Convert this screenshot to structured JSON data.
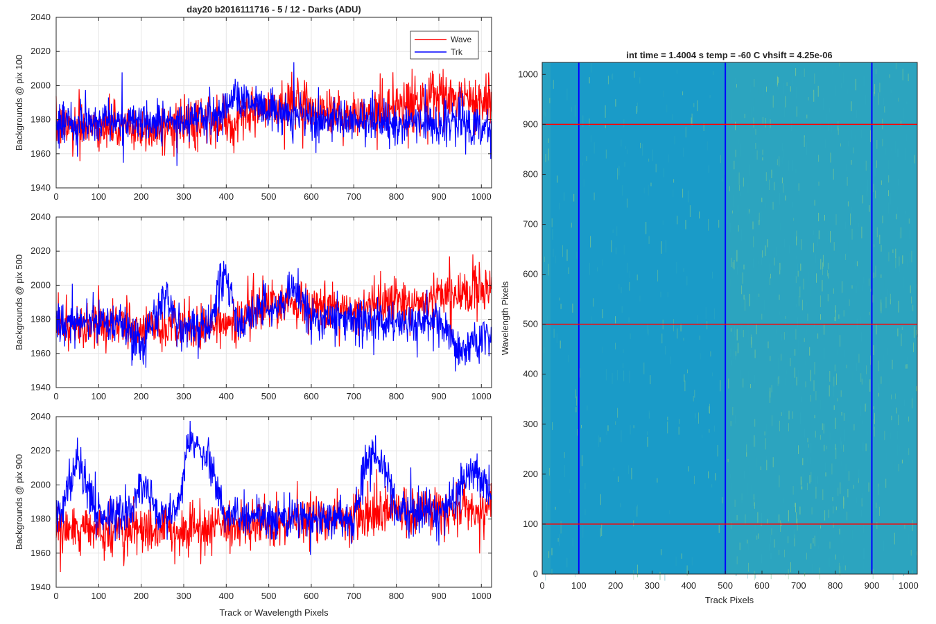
{
  "figure": {
    "left_title": "day20 b2016111716 - 5 / 12 - Darks (ADU)",
    "right_title": "int time = 1.4004 s    temp = -60 C    vhsift = 4.25e-06",
    "colors": {
      "wave": "#ff0000",
      "trk": "#0000ff",
      "grid": "#e6e6e6",
      "axis": "#262626"
    }
  },
  "chart_data": [
    {
      "type": "line",
      "title": "day20 b2016111716 - 5 / 12 - Darks (ADU)",
      "xlabel": "",
      "ylabel": "Backgrounds @ pix 100",
      "xlim": [
        0,
        1024
      ],
      "ylim": [
        1940,
        2040
      ],
      "xticks": [
        0,
        100,
        200,
        300,
        400,
        500,
        600,
        700,
        800,
        900,
        1000
      ],
      "yticks": [
        1940,
        1960,
        1980,
        2000,
        2020,
        2040
      ],
      "grid": true,
      "legend": {
        "placement": "top-right",
        "entries": [
          "Wave",
          "Trk"
        ]
      },
      "series": [
        {
          "name": "Wave",
          "color": "#ff0000",
          "approx": true,
          "noise": 9,
          "x": [
            0,
            50,
            100,
            200,
            300,
            360,
            400,
            450,
            500,
            550,
            600,
            650,
            700,
            750,
            800,
            850,
            900,
            950,
            1000,
            1024
          ],
          "y": [
            1975,
            1978,
            1976,
            1975,
            1976,
            1977,
            1978,
            1983,
            1985,
            1990,
            1988,
            1984,
            1982,
            1985,
            1988,
            1990,
            1993,
            1992,
            1990,
            1995
          ]
        },
        {
          "name": "Trk",
          "color": "#0000ff",
          "approx": true,
          "noise": 8,
          "x": [
            0,
            50,
            100,
            200,
            300,
            380,
            420,
            440,
            460,
            480,
            550,
            600,
            700,
            800,
            900,
            1000,
            1024
          ],
          "y": [
            1975,
            1978,
            1980,
            1979,
            1980,
            1981,
            1996,
            1993,
            1990,
            1987,
            1983,
            1980,
            1979,
            1978,
            1978,
            1977,
            1975
          ]
        }
      ]
    },
    {
      "type": "line",
      "xlabel": "",
      "ylabel": "Backgrounds @ pix 500",
      "xlim": [
        0,
        1024
      ],
      "ylim": [
        1940,
        2040
      ],
      "xticks": [
        0,
        100,
        200,
        300,
        400,
        500,
        600,
        700,
        800,
        900,
        1000
      ],
      "yticks": [
        1940,
        1960,
        1980,
        2000,
        2020,
        2040
      ],
      "grid": true,
      "series": [
        {
          "name": "Wave",
          "color": "#ff0000",
          "approx": true,
          "noise": 9,
          "x": [
            0,
            100,
            200,
            300,
            360,
            400,
            450,
            500,
            550,
            600,
            650,
            700,
            750,
            800,
            850,
            900,
            950,
            1000,
            1024
          ],
          "y": [
            1978,
            1977,
            1975,
            1974,
            1975,
            1978,
            1984,
            1988,
            1990,
            1987,
            1986,
            1984,
            1990,
            1992,
            1990,
            1994,
            1996,
            1998,
            2000
          ]
        },
        {
          "name": "Trk",
          "color": "#0000ff",
          "approx": true,
          "noise": 8,
          "x": [
            0,
            50,
            100,
            150,
            200,
            240,
            260,
            280,
            300,
            360,
            385,
            400,
            415,
            430,
            480,
            540,
            560,
            580,
            600,
            700,
            800,
            900,
            940,
            960,
            1000,
            1024
          ],
          "y": [
            1976,
            1978,
            1979,
            1978,
            1966,
            1985,
            1995,
            1980,
            1975,
            1976,
            2000,
            2008,
            1990,
            1975,
            1988,
            1990,
            2000,
            1988,
            1982,
            1980,
            1978,
            1977,
            1963,
            1962,
            1970,
            1968
          ]
        }
      ]
    },
    {
      "type": "line",
      "xlabel": "Track or Wavelength Pixels",
      "ylabel": "Backgrounds @ pix 900",
      "xlim": [
        0,
        1024
      ],
      "ylim": [
        1940,
        2040
      ],
      "xticks": [
        0,
        100,
        200,
        300,
        400,
        500,
        600,
        700,
        800,
        900,
        1000
      ],
      "yticks": [
        1940,
        1960,
        1980,
        2000,
        2020,
        2040
      ],
      "grid": true,
      "series": [
        {
          "name": "Wave",
          "color": "#ff0000",
          "approx": true,
          "noise": 9,
          "x": [
            0,
            100,
            200,
            300,
            400,
            500,
            600,
            700,
            800,
            900,
            950,
            1000,
            1024
          ],
          "y": [
            1972,
            1973,
            1973,
            1974,
            1976,
            1978,
            1980,
            1982,
            1984,
            1984,
            1985,
            1986,
            1988
          ]
        },
        {
          "name": "Trk",
          "color": "#0000ff",
          "approx": true,
          "noise": 8,
          "x": [
            0,
            30,
            50,
            70,
            90,
            120,
            180,
            200,
            220,
            240,
            290,
            310,
            330,
            360,
            380,
            400,
            500,
            700,
            730,
            750,
            770,
            800,
            900,
            950,
            980,
            1000,
            1024
          ],
          "y": [
            1978,
            2003,
            2010,
            2002,
            1985,
            1982,
            1985,
            2000,
            1997,
            1982,
            1984,
            2028,
            2022,
            2015,
            1995,
            1982,
            1980,
            1982,
            2010,
            2018,
            2012,
            1985,
            1983,
            1998,
            2010,
            2005,
            1995
          ]
        }
      ]
    },
    {
      "type": "heatmap",
      "title": "int time = 1.4004 s    temp = -60 C    vhsift = 4.25e-06",
      "xlabel": "Track Pixels",
      "ylabel": "Wavelength Pixels",
      "xlim": [
        0,
        1024
      ],
      "ylim": [
        0,
        1024
      ],
      "xticks": [
        0,
        100,
        200,
        300,
        400,
        500,
        600,
        700,
        800,
        900,
        1000
      ],
      "yticks": [
        0,
        100,
        200,
        300,
        400,
        500,
        600,
        700,
        800,
        900,
        1000
      ],
      "colormap": "parula",
      "base_color": "#1a9bc8",
      "highlight_color": "#7fc98f",
      "vertical_lines": {
        "x": [
          100,
          500,
          900
        ],
        "color": "#0000ff"
      },
      "horizontal_lines": {
        "y": [
          100,
          500,
          900
        ],
        "color": "#ff0000"
      },
      "brighter_region_x": [
        500,
        1024
      ]
    }
  ]
}
